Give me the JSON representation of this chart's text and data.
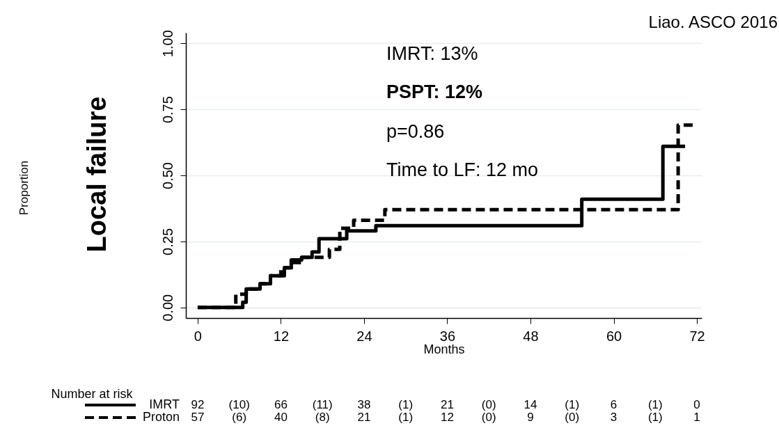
{
  "chart_data": {
    "type": "step",
    "ylabel": "Local failure",
    "xlabel": "Months",
    "annotations": [
      "IMRT:  13%",
      "PSPT: 12%",
      "p=0.86",
      "Time to LF: 12 mo",
      "Proportion",
      "Liao. ASCO 2016",
      "Number at risk",
      "92 (10) 66 (11) 38 (1) 21 (0) 14 (1) 6 (1) 0",
      "57 (6) 40 (8) 21 (1) 12 (0) 9 (0) 3 (1) 1"
    ],
    "series": [
      {
        "name": "IMRT",
        "color": "#000000",
        "line_style": "solid",
        "x": [
          0,
          6.5,
          7,
          9,
          10.5,
          12.5,
          13.5,
          15,
          16.5,
          17.5,
          21.5,
          25.7,
          55.4,
          67.1,
          70.3
        ],
        "values": [
          0,
          0.02,
          0.07,
          0.09,
          0.12,
          0.15,
          0.18,
          0.19,
          0.21,
          0.26,
          0.29,
          0.31,
          0.41,
          0.61,
          0.61
        ]
      },
      {
        "name": "Proton",
        "color": "#000000",
        "line_style": "dashed",
        "x": [
          0,
          5.5,
          7,
          9,
          10.5,
          12,
          13.5,
          15,
          19,
          20.5,
          22.5,
          27,
          69.3,
          71.8
        ],
        "values": [
          0,
          0.05,
          0.07,
          0.09,
          0.12,
          0.15,
          0.17,
          0.19,
          0.22,
          0.3,
          0.33,
          0.37,
          0.69,
          0.69
        ]
      }
    ],
    "xlim": [
      -1.7,
      72.7
    ],
    "ylim": [
      -0.04,
      1.04
    ],
    "xticks": [
      0,
      12,
      24,
      36,
      48,
      60,
      72
    ],
    "yticks": [
      {
        "value": 0,
        "label": "0.00"
      },
      {
        "value": 0.25,
        "label": "0.25"
      },
      {
        "value": 0.5,
        "label": "0.50"
      },
      {
        "value": 0.75,
        "label": "0.75"
      },
      {
        "value": 1,
        "label": "1.00"
      }
    ],
    "grid": "y",
    "legend": "bottom left"
  }
}
